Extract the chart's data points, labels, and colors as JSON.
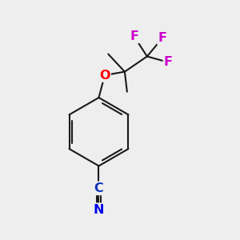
{
  "bg_color": "#eeeeee",
  "bond_color": "#1a1a1a",
  "bond_width": 1.5,
  "atom_colors": {
    "F": "#cc00cc",
    "O": "#ff0000",
    "N": "#0000ee",
    "C": "#1133bb"
  },
  "font_size": 11.5
}
